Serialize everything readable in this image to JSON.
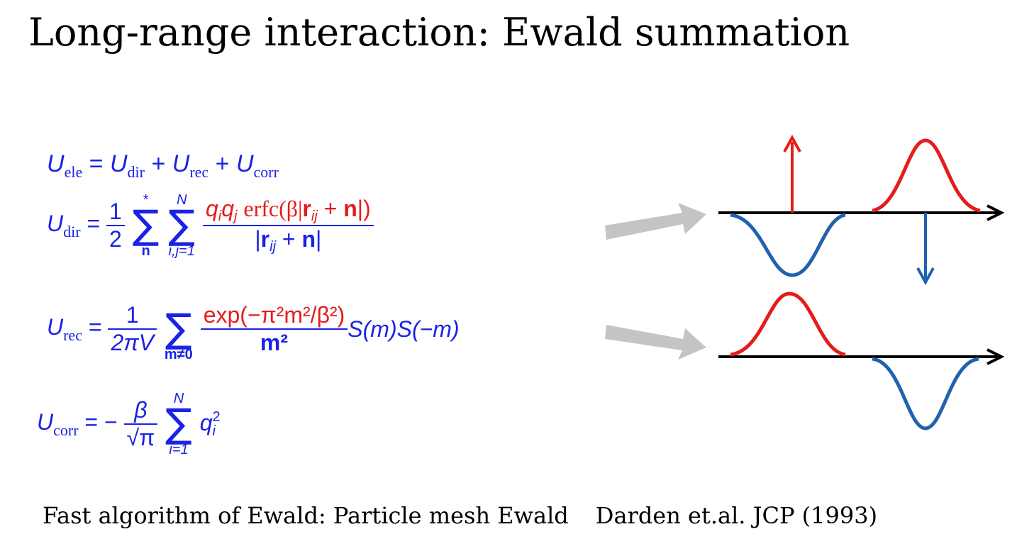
{
  "title": "Long-range interaction: Ewald summation",
  "footer": {
    "left": "Fast algorithm of Ewald: Particle mesh Ewald",
    "right": "Darden et.al. JCP (1993)"
  },
  "equations": {
    "ele": {
      "lhs_sym": "U",
      "lhs_sub": "ele",
      "eq": "=",
      "t1": "U",
      "t1_sub": "dir",
      "plus1": "+",
      "t2": "U",
      "t2_sub": "rec",
      "plus2": "+",
      "t3": "U",
      "t3_sub": "corr"
    },
    "dir": {
      "lhs_sym": "U",
      "lhs_sub": "dir",
      "eq": "=",
      "half_num": "1",
      "half_den": "2",
      "sum1_top": "*",
      "sum1_bot": "n",
      "sum2_top": "N",
      "sum2_bot": "i,j=1",
      "num_q": "q",
      "num_qi": "i",
      "num_qj": "j",
      "num_erfc": "erfc(β|",
      "num_r": "r",
      "num_rij": "ij",
      "num_plus": " + ",
      "num_n": "n",
      "num_close": "|)",
      "den_open": "|",
      "den_r": "r",
      "den_rij": "ij",
      "den_plus": " + ",
      "den_n": "n",
      "den_close": "|"
    },
    "rec": {
      "lhs_sym": "U",
      "lhs_sub": "rec",
      "eq": "=",
      "pre_num": "1",
      "pre_den": "2πV",
      "sum_bot": "m≠0",
      "num": "exp(−π²m²/β²)",
      "den": "m²",
      "tail": "S(m)S(−m)"
    },
    "corr": {
      "lhs_sym": "U",
      "lhs_sub": "corr",
      "eq": "= −",
      "pre_num": "β",
      "pre_den": "√π",
      "sum_top": "N",
      "sum_bot": "i=1",
      "term": "q",
      "term_sup": "2",
      "term_sub": "i"
    }
  },
  "colors": {
    "equation_blue": "#1a22e6",
    "highlight_red": "#e51c1c",
    "curve_blue": "#1f62b0",
    "arrow_gray": "#c4c4c4",
    "axis_black": "#000000"
  }
}
